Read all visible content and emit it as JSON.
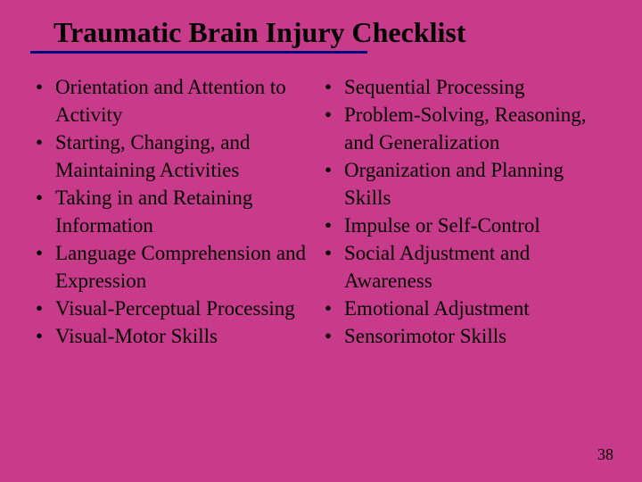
{
  "slide": {
    "title": "Traumatic Brain Injury Checklist",
    "background_color": "#c73b8a",
    "underline_color": "#000080",
    "text_color": "#000000",
    "title_fontsize": 32,
    "body_fontsize": 23,
    "page_number": "38",
    "columns": {
      "left": [
        "Orientation and Attention to Activity",
        "Starting, Changing, and Maintaining Activities",
        "Taking in and Retaining Information",
        "Language Comprehension and Expression",
        "Visual-Perceptual Processing",
        "Visual-Motor Skills"
      ],
      "right": [
        "Sequential Processing",
        "Problem-Solving, Reasoning, and Generalization",
        "Organization and Planning Skills",
        "Impulse or Self-Control",
        "Social Adjustment and Awareness",
        "Emotional Adjustment",
        "Sensorimotor Skills"
      ]
    }
  }
}
